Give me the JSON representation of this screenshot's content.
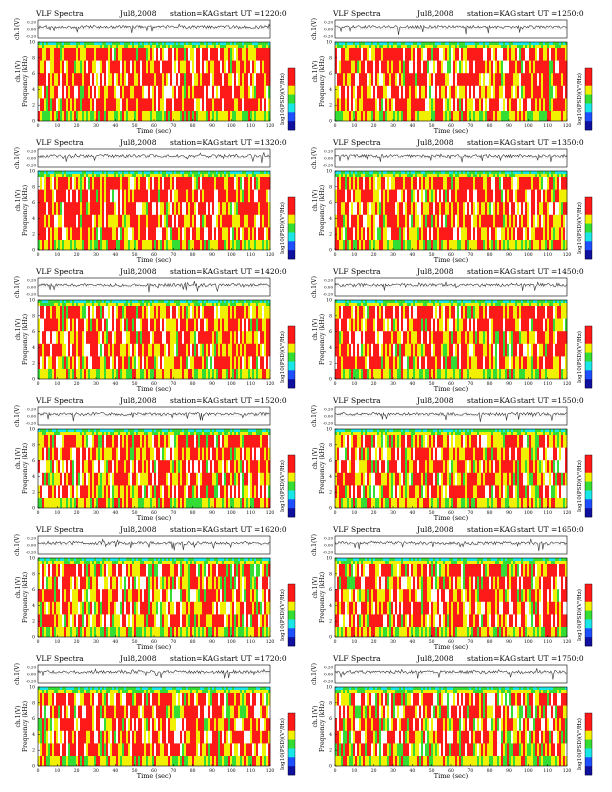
{
  "chart_data": [
    {
      "type": "heatmap",
      "title_left": "VLF Spectra",
      "date": "Jul8,2008",
      "station": "station=KAG",
      "start": "start UT =1220:0",
      "ts_ylabel": "ch.1(V)",
      "ts_yticks": [
        "0.20",
        "0.00",
        "-0.20"
      ],
      "ts_ylim": [
        -0.2,
        0.2
      ],
      "ylabel": "Frequency (kHz)",
      "yticks": [
        "0",
        "2",
        "4",
        "6",
        "8",
        "10"
      ],
      "ylim": [
        0,
        10
      ],
      "xlabel": "Time (sec)",
      "xticks": [
        "0",
        "10",
        "20",
        "30",
        "40",
        "50",
        "60",
        "70",
        "80",
        "90",
        "100",
        "110",
        "120"
      ],
      "xlim": [
        0,
        120
      ],
      "colorbar_label": "log10(PSD)(V²/Hz)",
      "intensity": 0.85,
      "seed": 1
    },
    {
      "type": "heatmap",
      "title_left": "VLF Spectra",
      "date": "Jul8,2008",
      "station": "station=KAG",
      "start": "start UT =1250:0",
      "ts_ylabel": "ch.1(V)",
      "ts_yticks": [
        "0.20",
        "0.00",
        "-0.20"
      ],
      "ts_ylim": [
        -0.2,
        0.2
      ],
      "ylabel": "Frequency (kHz)",
      "yticks": [
        "0",
        "2",
        "4",
        "6",
        "8",
        "10"
      ],
      "ylim": [
        0,
        10
      ],
      "xlabel": "Time (sec)",
      "xticks": [
        "0",
        "10",
        "20",
        "30",
        "40",
        "50",
        "60",
        "70",
        "80",
        "90",
        "100",
        "110",
        "120"
      ],
      "xlim": [
        0,
        120
      ],
      "colorbar_label": "log10(PSD)(V²/Hz)",
      "intensity": 0.85,
      "seed": 2
    },
    {
      "type": "heatmap",
      "title_left": "VLF Spectra",
      "date": "Jul8,2008",
      "station": "station=KAG",
      "start": "start UT =1320:0",
      "ts_ylabel": "ch.1(V)",
      "ts_yticks": [
        "0.20",
        "0.00",
        "-0.20"
      ],
      "ts_ylim": [
        -0.2,
        0.2
      ],
      "ylabel": "Frequency (kHz)",
      "yticks": [
        "0",
        "2",
        "4",
        "6",
        "8",
        "10"
      ],
      "ylim": [
        0,
        10
      ],
      "xlabel": "Time (sec)",
      "xticks": [
        "0",
        "10",
        "20",
        "30",
        "40",
        "50",
        "60",
        "70",
        "80",
        "90",
        "100",
        "110",
        "120"
      ],
      "xlim": [
        0,
        120
      ],
      "colorbar_label": "log10(PSD)(V²/Hz)",
      "intensity": 0.75,
      "seed": 3
    },
    {
      "type": "heatmap",
      "title_left": "VLF Spectra",
      "date": "Jul8,2008",
      "station": "station=KAG",
      "start": "start UT =1350:0",
      "ts_ylabel": "ch.1(V)",
      "ts_yticks": [
        "0.20",
        "0.00",
        "-0.20"
      ],
      "ts_ylim": [
        -0.2,
        0.2
      ],
      "ylabel": "Frequency (kHz)",
      "yticks": [
        "0",
        "2",
        "4",
        "6",
        "8",
        "10"
      ],
      "ylim": [
        0,
        10
      ],
      "xlabel": "Time (sec)",
      "xticks": [
        "0",
        "10",
        "20",
        "30",
        "40",
        "50",
        "60",
        "70",
        "80",
        "90",
        "100",
        "110",
        "120"
      ],
      "xlim": [
        0,
        120
      ],
      "colorbar_label": "log10(PSD)(V²/Hz)",
      "intensity": 0.75,
      "seed": 4
    },
    {
      "type": "heatmap",
      "title_left": "VLF Spectra",
      "date": "Jul8,2008",
      "station": "station=KAG",
      "start": "start UT =1420:0",
      "ts_ylabel": "ch.1(V)",
      "ts_yticks": [
        "0.20",
        "0.00",
        "-0.20"
      ],
      "ts_ylim": [
        -0.2,
        0.2
      ],
      "ylabel": "Frequency (kHz)",
      "yticks": [
        "0",
        "2",
        "4",
        "6",
        "8",
        "10"
      ],
      "ylim": [
        0,
        10
      ],
      "xlabel": "Time (sec)",
      "xticks": [
        "0",
        "10",
        "20",
        "30",
        "40",
        "50",
        "60",
        "70",
        "80",
        "90",
        "100",
        "110",
        "120"
      ],
      "xlim": [
        0,
        120
      ],
      "colorbar_label": "log10(PSD)(V²/Hz)",
      "intensity": 0.6,
      "seed": 5
    },
    {
      "type": "heatmap",
      "title_left": "VLF Spectra",
      "date": "Jul8,2008",
      "station": "station=KAG",
      "start": "start UT =1450:0",
      "ts_ylabel": "ch.1(V)",
      "ts_yticks": [
        "0.20",
        "0.00",
        "-0.20"
      ],
      "ts_ylim": [
        -0.2,
        0.2
      ],
      "ylabel": "Frequency (kHz)",
      "yticks": [
        "0",
        "2",
        "4",
        "6",
        "8",
        "10"
      ],
      "ylim": [
        0,
        10
      ],
      "xlabel": "Time (sec)",
      "xticks": [
        "0",
        "10",
        "20",
        "30",
        "40",
        "50",
        "60",
        "70",
        "80",
        "90",
        "100",
        "110",
        "120"
      ],
      "xlim": [
        0,
        120
      ],
      "colorbar_label": "log10(PSD)(V²/Hz)",
      "intensity": 0.6,
      "seed": 6
    },
    {
      "type": "heatmap",
      "title_left": "VLF Spectra",
      "date": "Jul8,2008",
      "station": "station=KAG",
      "start": "start UT =1520:0",
      "ts_ylabel": "ch.1(V)",
      "ts_yticks": [
        "0.20",
        "0.00",
        "-0.20"
      ],
      "ts_ylim": [
        -0.2,
        0.2
      ],
      "ylabel": "Frequency (kHz)",
      "yticks": [
        "0",
        "2",
        "4",
        "6",
        "8",
        "10"
      ],
      "ylim": [
        0,
        10
      ],
      "xlabel": "Time (sec)",
      "xticks": [
        "0",
        "10",
        "20",
        "30",
        "40",
        "50",
        "60",
        "70",
        "80",
        "90",
        "100",
        "110",
        "120"
      ],
      "xlim": [
        0,
        120
      ],
      "colorbar_label": "log10(PSD)(V²/Hz)",
      "intensity": 0.5,
      "seed": 7
    },
    {
      "type": "heatmap",
      "title_left": "VLF Spectra",
      "date": "Jul8,2008",
      "station": "station=KAG",
      "start": "start UT =1550:0",
      "ts_ylabel": "ch.1(V)",
      "ts_yticks": [
        "0.20",
        "0.00",
        "-0.20"
      ],
      "ts_ylim": [
        -0.2,
        0.2
      ],
      "ylabel": "Frequency (kHz)",
      "yticks": [
        "0",
        "2",
        "4",
        "6",
        "8",
        "10"
      ],
      "ylim": [
        0,
        10
      ],
      "xlabel": "Time (sec)",
      "xticks": [
        "0",
        "10",
        "20",
        "30",
        "40",
        "50",
        "60",
        "70",
        "80",
        "90",
        "100",
        "110",
        "120"
      ],
      "xlim": [
        0,
        120
      ],
      "colorbar_label": "log10(PSD)(V²/Hz)",
      "intensity": 0.5,
      "seed": 8
    },
    {
      "type": "heatmap",
      "title_left": "VLF Spectra",
      "date": "Jul8,2008",
      "station": "station=KAG",
      "start": "start UT =1620:0",
      "ts_ylabel": "ch.1(V)",
      "ts_yticks": [
        "0.20",
        "0.00",
        "-0.20"
      ],
      "ts_ylim": [
        -0.2,
        0.2
      ],
      "ylabel": "Frequency (kHz)",
      "yticks": [
        "0",
        "2",
        "4",
        "6",
        "8",
        "10"
      ],
      "ylim": [
        0,
        10
      ],
      "xlabel": "Time (sec)",
      "xticks": [
        "0",
        "10",
        "20",
        "30",
        "40",
        "50",
        "60",
        "70",
        "80",
        "90",
        "100",
        "110",
        "120"
      ],
      "xlim": [
        0,
        120
      ],
      "colorbar_label": "log10(PSD)(V²/Hz)",
      "intensity": 0.45,
      "seed": 9
    },
    {
      "type": "heatmap",
      "title_left": "VLF Spectra",
      "date": "Jul8,2008",
      "station": "station=KAG",
      "start": "start UT =1650:0",
      "ts_ylabel": "ch.1(V)",
      "ts_yticks": [
        "0.20",
        "0.00",
        "-0.20"
      ],
      "ts_ylim": [
        -0.2,
        0.2
      ],
      "ylabel": "Frequency (kHz)",
      "yticks": [
        "0",
        "2",
        "4",
        "6",
        "8",
        "10"
      ],
      "ylim": [
        0,
        10
      ],
      "xlabel": "Time (sec)",
      "xticks": [
        "0",
        "10",
        "20",
        "30",
        "40",
        "50",
        "60",
        "70",
        "80",
        "90",
        "100",
        "110",
        "120"
      ],
      "xlim": [
        0,
        120
      ],
      "colorbar_label": "log10(PSD)(V²/Hz)",
      "intensity": 0.45,
      "seed": 10
    },
    {
      "type": "heatmap",
      "title_left": "VLF Spectra",
      "date": "Jul8,2008",
      "station": "station=KAG",
      "start": "start UT =1720:0",
      "ts_ylabel": "ch.1(V)",
      "ts_yticks": [
        "0.20",
        "0.00",
        "-0.20"
      ],
      "ts_ylim": [
        -0.2,
        0.2
      ],
      "ylabel": "Frequency (kHz)",
      "yticks": [
        "0",
        "2",
        "4",
        "6",
        "8",
        "10"
      ],
      "ylim": [
        0,
        10
      ],
      "xlabel": "Time (sec)",
      "xticks": [
        "0",
        "10",
        "20",
        "30",
        "40",
        "50",
        "60",
        "70",
        "80",
        "90",
        "100",
        "110",
        "120"
      ],
      "xlim": [
        0,
        120
      ],
      "colorbar_label": "log10(PSD)(V²/Hz)",
      "intensity": 0.55,
      "seed": 11
    },
    {
      "type": "heatmap",
      "title_left": "VLF Spectra",
      "date": "Jul8,2008",
      "station": "station=KAG",
      "start": "start UT =1750:0",
      "ts_ylabel": "ch.1(V)",
      "ts_yticks": [
        "0.20",
        "0.00",
        "-0.20"
      ],
      "ts_ylim": [
        -0.2,
        0.2
      ],
      "ylabel": "Frequency (kHz)",
      "yticks": [
        "0",
        "2",
        "4",
        "6",
        "8",
        "10"
      ],
      "ylim": [
        0,
        10
      ],
      "xlabel": "Time (sec)",
      "xticks": [
        "0",
        "10",
        "20",
        "30",
        "40",
        "50",
        "60",
        "70",
        "80",
        "90",
        "100",
        "110",
        "120"
      ],
      "xlim": [
        0,
        120
      ],
      "colorbar_label": "log10(PSD)(V²/Hz)",
      "intensity": 0.4,
      "seed": 12
    }
  ],
  "colors": {
    "red": "#ff1a1a",
    "yellow": "#f0f000",
    "green": "#33dd33",
    "cyan": "#19e6e6",
    "blue": "#1e4fff",
    "white": "#ffffff",
    "line": "#333333"
  }
}
